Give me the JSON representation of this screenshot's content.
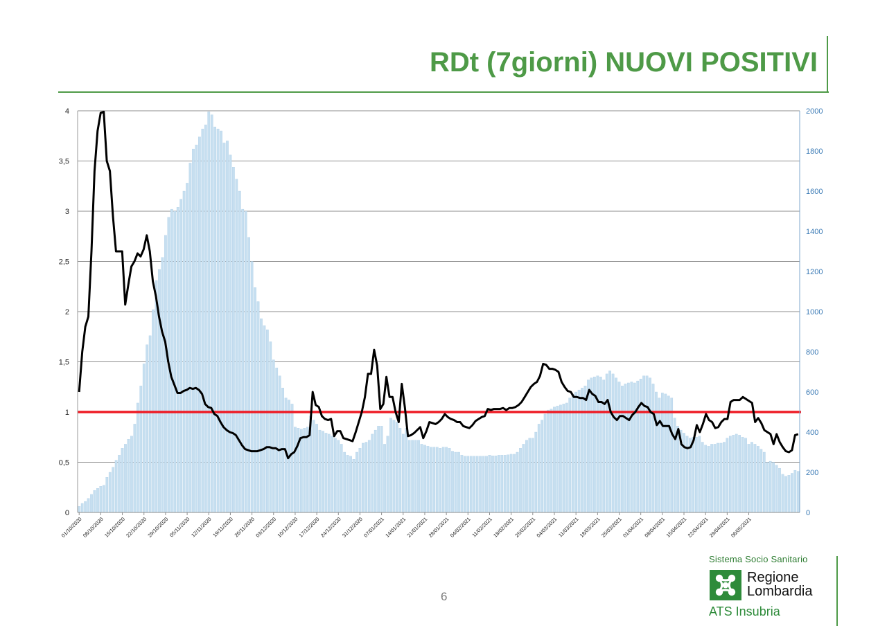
{
  "page": {
    "title": "RDt (7giorni) NUOVI POSITIVI",
    "page_number": "6",
    "accent_color": "#4e9a47",
    "logo": {
      "system_label": "Sistema Socio Sanitario",
      "name_line1": "Regione",
      "name_line2": "Lombardia",
      "ats_label": "ATS Insubria",
      "icon": "regione-lombardia-rosa-camuna-icon"
    }
  },
  "chart_data": {
    "type": "bar+line",
    "title": "",
    "xlabel": "",
    "ylabel_left": "",
    "ylabel_right": "",
    "grid": true,
    "legend": "none",
    "y_left": {
      "min": 0,
      "max": 4,
      "ticks": [
        "0",
        "0,5",
        "1",
        "1,5",
        "2",
        "2,5",
        "3",
        "3,5",
        "4"
      ]
    },
    "y_right": {
      "min": 0,
      "max": 2000,
      "ticks": [
        "0",
        "200",
        "400",
        "600",
        "800",
        "1000",
        "1200",
        "1400",
        "1600",
        "1800",
        "2000"
      ]
    },
    "x_tick_labels": [
      "01/10/2020",
      "08/10/2020",
      "15/10/2020",
      "22/10/2020",
      "29/10/2020",
      "05/11/2020",
      "12/11/2020",
      "19/11/2020",
      "26/11/2020",
      "03/12/2020",
      "10/12/2020",
      "17/12/2020",
      "24/12/2020",
      "31/12/2020",
      "07/01/2021",
      "14/01/2021",
      "21/01/2021",
      "28/01/2021",
      "04/02/2021",
      "11/02/2021",
      "18/02/2021",
      "25/02/2021",
      "04/03/2021",
      "11/03/2021",
      "18/03/2021",
      "25/03/2021",
      "01/04/2021",
      "08/04/2021",
      "15/04/2021",
      "22/04/2021",
      "29/04/2021",
      "06/05/2021"
    ],
    "threshold": {
      "value": 1,
      "color": "#ee1c25"
    },
    "bars": {
      "axis": "right",
      "color": "#c6dff0",
      "values": [
        30,
        45,
        55,
        70,
        90,
        110,
        120,
        130,
        135,
        175,
        200,
        225,
        260,
        285,
        320,
        340,
        365,
        380,
        440,
        545,
        630,
        740,
        835,
        880,
        1010,
        1155,
        1210,
        1270,
        1380,
        1470,
        1510,
        1500,
        1520,
        1560,
        1600,
        1640,
        1740,
        1810,
        1830,
        1870,
        1910,
        1930,
        1995,
        1980,
        1920,
        1910,
        1900,
        1840,
        1850,
        1780,
        1720,
        1660,
        1600,
        1510,
        1500,
        1370,
        1250,
        1120,
        1050,
        965,
        930,
        910,
        850,
        760,
        720,
        680,
        620,
        570,
        560,
        540,
        425,
        420,
        415,
        420,
        425,
        480,
        460,
        440,
        410,
        405,
        395,
        390,
        380,
        370,
        360,
        340,
        300,
        285,
        280,
        265,
        300,
        320,
        345,
        350,
        360,
        390,
        410,
        430,
        430,
        340,
        380,
        470,
        460,
        450,
        420,
        390,
        420,
        360,
        360,
        360,
        360,
        340,
        335,
        330,
        325,
        325,
        325,
        320,
        325,
        325,
        320,
        305,
        300,
        300,
        285,
        280,
        280,
        280,
        280,
        280,
        280,
        280,
        280,
        285,
        282,
        282,
        285,
        285,
        285,
        287,
        290,
        290,
        300,
        320,
        340,
        360,
        370,
        370,
        400,
        440,
        460,
        490,
        510,
        515,
        525,
        530,
        535,
        540,
        545,
        570,
        590,
        600,
        610,
        620,
        630,
        660,
        670,
        675,
        680,
        675,
        660,
        690,
        705,
        690,
        670,
        650,
        630,
        640,
        645,
        650,
        645,
        655,
        665,
        680,
        680,
        670,
        640,
        600,
        570,
        595,
        590,
        580,
        570,
        470,
        430,
        410,
        395,
        380,
        370,
        375,
        375,
        380,
        350,
        335,
        330,
        340,
        340,
        345,
        345,
        350,
        370,
        380,
        385,
        390,
        385,
        375,
        370,
        340,
        350,
        340,
        330,
        315,
        300,
        250,
        255,
        250,
        235,
        220,
        190,
        180,
        185,
        195,
        210,
        205
      ]
    },
    "line": {
      "axis": "left",
      "color": "#000000",
      "values": [
        1.2,
        1.6,
        1.85,
        1.95,
        2.6,
        3.4,
        3.8,
        3.98,
        3.99,
        3.5,
        3.4,
        2.95,
        2.6,
        2.6,
        2.6,
        2.07,
        2.27,
        2.45,
        2.5,
        2.58,
        2.55,
        2.62,
        2.76,
        2.6,
        2.3,
        2.15,
        1.95,
        1.8,
        1.7,
        1.5,
        1.35,
        1.27,
        1.19,
        1.19,
        1.21,
        1.22,
        1.24,
        1.23,
        1.24,
        1.22,
        1.18,
        1.08,
        1.05,
        1.04,
        0.98,
        0.96,
        0.9,
        0.85,
        0.82,
        0.8,
        0.79,
        0.77,
        0.72,
        0.67,
        0.63,
        0.62,
        0.61,
        0.61,
        0.61,
        0.62,
        0.63,
        0.65,
        0.65,
        0.64,
        0.64,
        0.62,
        0.63,
        0.63,
        0.54,
        0.58,
        0.6,
        0.66,
        0.74,
        0.75,
        0.75,
        0.77,
        1.2,
        1.07,
        1.05,
        0.96,
        0.93,
        0.92,
        0.93,
        0.76,
        0.81,
        0.81,
        0.74,
        0.73,
        0.72,
        0.71,
        0.8,
        0.9,
        1.0,
        1.15,
        1.38,
        1.38,
        1.62,
        1.46,
        1.03,
        1.08,
        1.35,
        1.15,
        1.15,
        1.0,
        0.9,
        1.28,
        1.05,
        0.76,
        0.77,
        0.79,
        0.82,
        0.85,
        0.74,
        0.81,
        0.9,
        0.89,
        0.88,
        0.9,
        0.93,
        0.98,
        0.95,
        0.93,
        0.92,
        0.9,
        0.9,
        0.86,
        0.85,
        0.84,
        0.87,
        0.91,
        0.93,
        0.95,
        0.96,
        1.03,
        1.02,
        1.03,
        1.03,
        1.03,
        1.04,
        1.02,
        1.04,
        1.04,
        1.05,
        1.07,
        1.1,
        1.15,
        1.2,
        1.25,
        1.28,
        1.3,
        1.36,
        1.48,
        1.47,
        1.43,
        1.43,
        1.42,
        1.4,
        1.3,
        1.25,
        1.21,
        1.2,
        1.15,
        1.15,
        1.14,
        1.14,
        1.12,
        1.22,
        1.18,
        1.16,
        1.1,
        1.1,
        1.08,
        1.12,
        1.0,
        0.95,
        0.92,
        0.96,
        0.96,
        0.94,
        0.92,
        0.97,
        1.0,
        1.05,
        1.09,
        1.06,
        1.05,
        1.0,
        0.98,
        0.87,
        0.91,
        0.86,
        0.86,
        0.86,
        0.78,
        0.73,
        0.83,
        0.68,
        0.65,
        0.64,
        0.65,
        0.72,
        0.87,
        0.8,
        0.88,
        0.98,
        0.92,
        0.9,
        0.84,
        0.85,
        0.9,
        0.93,
        0.93,
        1.1,
        1.12,
        1.12,
        1.12,
        1.15,
        1.13,
        1.11,
        1.09,
        0.9,
        0.94,
        0.89,
        0.82,
        0.8,
        0.78,
        0.68,
        0.78,
        0.7,
        0.65,
        0.61,
        0.6,
        0.62,
        0.77,
        0.78
      ]
    }
  }
}
